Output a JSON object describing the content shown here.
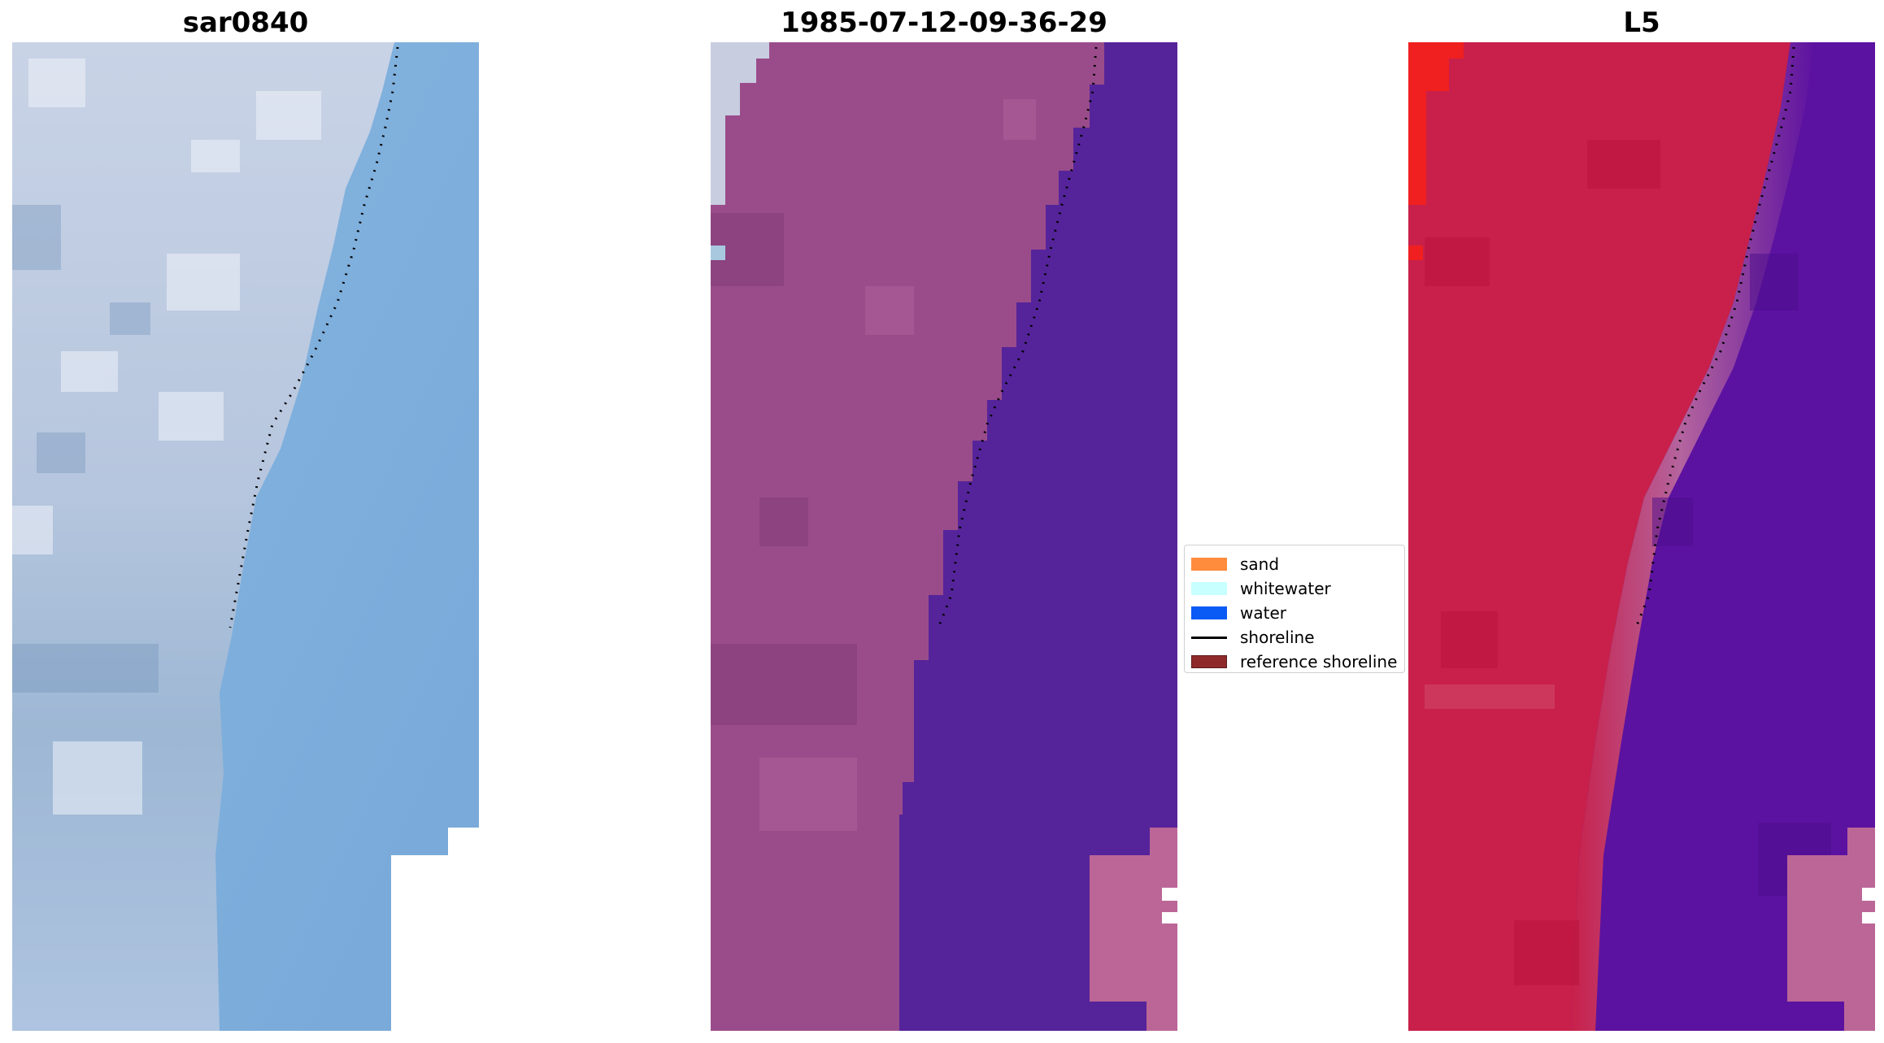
{
  "panels": [
    {
      "title": "sar0840"
    },
    {
      "title": "1985-07-12-09-36-29"
    },
    {
      "title": "L5"
    }
  ],
  "legend": {
    "items": [
      {
        "label": "sand",
        "color": "#ff8c3c",
        "kind": "patch"
      },
      {
        "label": "whitewater",
        "color": "#c8ffff",
        "kind": "patch"
      },
      {
        "label": "water",
        "color": "#0a5af5",
        "kind": "patch"
      },
      {
        "label": "shoreline",
        "color": "#000000",
        "kind": "line"
      },
      {
        "label": "reference shoreline",
        "color": "#8e2a2a",
        "kind": "patch"
      }
    ]
  },
  "colors": {
    "sar_land": "#b8c8dc",
    "sar_water": "#80b0dc",
    "class_land": "#9a4c8a",
    "class_water": "#55249a",
    "class_sand_patch": "#bb6697",
    "l5_land": "#c8204a",
    "l5_water": "#5c12a0",
    "l5_transition": "#b4649e"
  }
}
